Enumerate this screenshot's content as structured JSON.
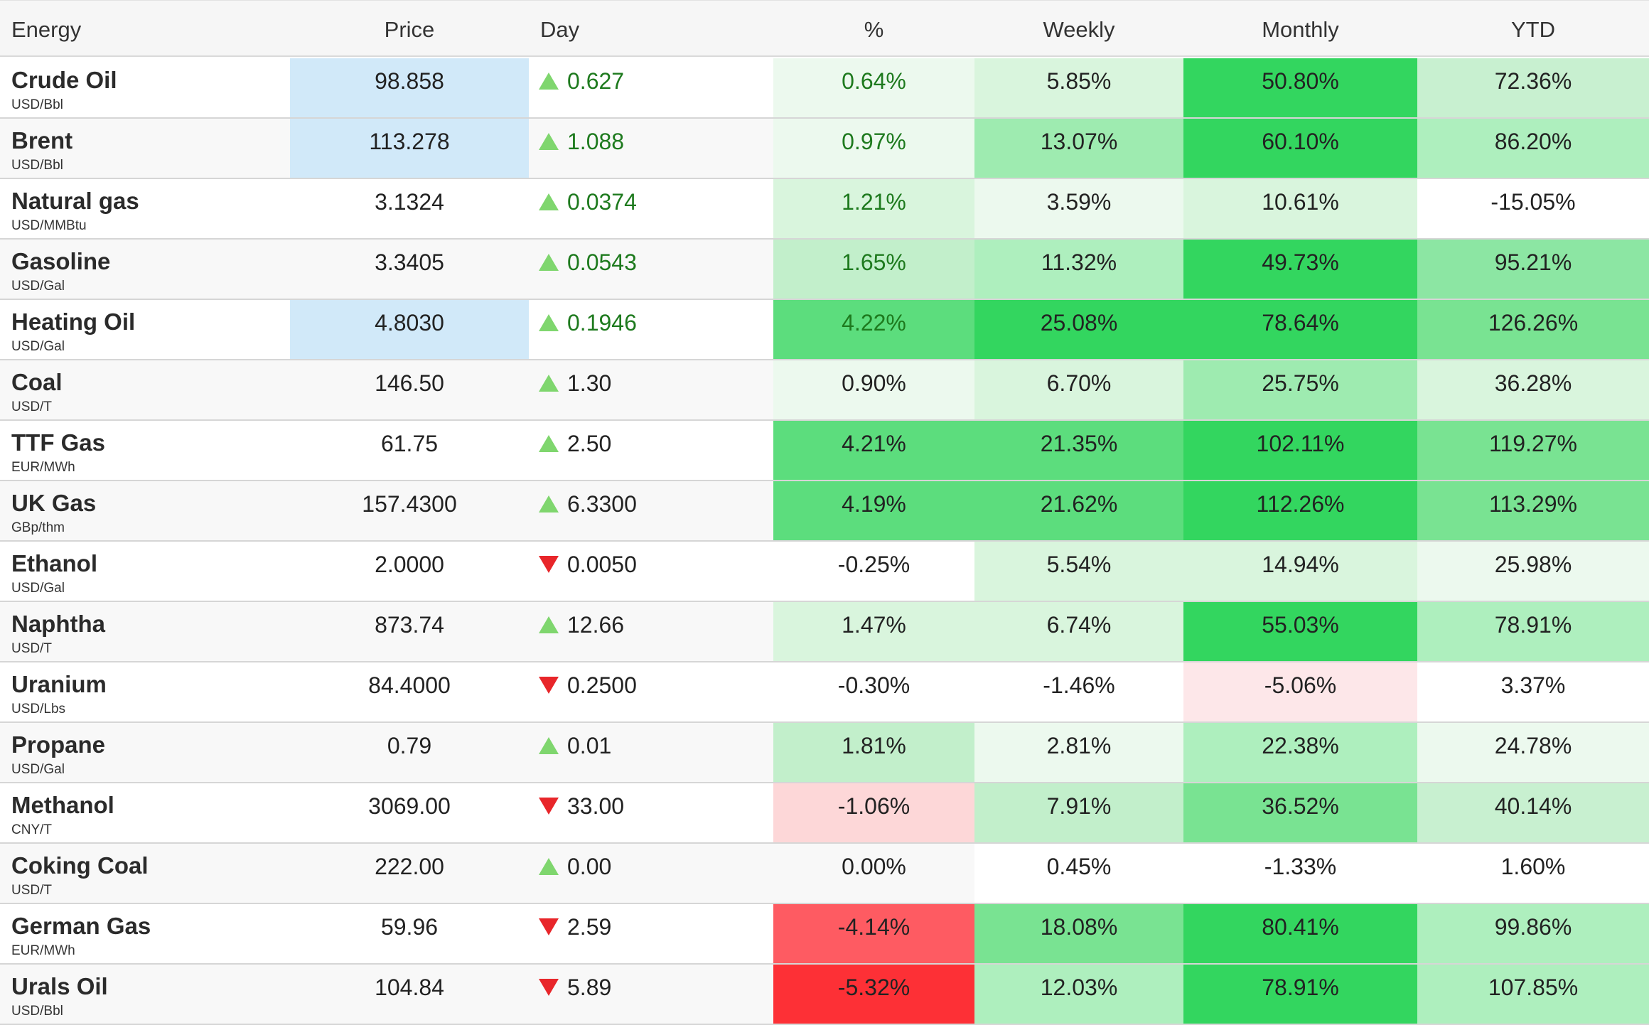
{
  "header": {
    "energy": "Energy",
    "price": "Price",
    "day": "Day",
    "pct": "%",
    "weekly": "Weekly",
    "monthly": "Monthly",
    "ytd": "YTD"
  },
  "colors": {
    "price_highlight": "#d1e9f9",
    "positive_text": "#1e7a1e",
    "neutral_text": "#222222",
    "row_alt": "#f8f8f8",
    "up_arrow": "#7fd66e",
    "down_arrow": "#e8262a"
  },
  "rows": [
    {
      "name": "Crude Oil",
      "unit": "USD/Bbl",
      "price": "98.858",
      "price_highlight": true,
      "day": "0.627",
      "dir": "up",
      "green_text": true,
      "pct": "0.64%",
      "weekly": "5.85%",
      "monthly": "50.80%",
      "ytd": "72.36%",
      "bg": [
        "#ecf9ee",
        "#d9f5dd",
        "#33d65f",
        "#c8f0d0"
      ]
    },
    {
      "name": "Brent",
      "unit": "USD/Bbl",
      "price": "113.278",
      "price_highlight": true,
      "day": "1.088",
      "dir": "up",
      "green_text": true,
      "pct": "0.97%",
      "weekly": "13.07%",
      "monthly": "60.10%",
      "ytd": "86.20%",
      "bg": [
        "#ecf9ee",
        "#9eebb0",
        "#33d65f",
        "#aeefbe"
      ]
    },
    {
      "name": "Natural gas",
      "unit": "USD/MMBtu",
      "price": "3.1324",
      "price_highlight": false,
      "day": "0.0374",
      "dir": "up",
      "green_text": true,
      "pct": "1.21%",
      "weekly": "3.59%",
      "monthly": "10.61%",
      "ytd": "-15.05%",
      "bg": [
        "#d9f5dd",
        "#ecf9ee",
        "#d9f5dd",
        "#ffffff"
      ]
    },
    {
      "name": "Gasoline",
      "unit": "USD/Gal",
      "price": "3.3405",
      "price_highlight": false,
      "day": "0.0543",
      "dir": "up",
      "green_text": true,
      "pct": "1.65%",
      "weekly": "11.32%",
      "monthly": "49.73%",
      "ytd": "95.21%",
      "bg": [
        "#c2efcb",
        "#aeefbe",
        "#33d65f",
        "#8ce6a3"
      ]
    },
    {
      "name": "Heating Oil",
      "unit": "USD/Gal",
      "price": "4.8030",
      "price_highlight": true,
      "day": "0.1946",
      "dir": "up",
      "green_text": true,
      "pct": "4.22%",
      "weekly": "25.08%",
      "monthly": "78.64%",
      "ytd": "126.26%",
      "bg": [
        "#5cdd7d",
        "#33d65f",
        "#33d65f",
        "#79e392"
      ]
    },
    {
      "name": "Coal",
      "unit": "USD/T",
      "price": "146.50",
      "price_highlight": false,
      "day": "1.30",
      "dir": "up",
      "green_text": false,
      "pct": "0.90%",
      "weekly": "6.70%",
      "monthly": "25.75%",
      "ytd": "36.28%",
      "bg": [
        "#ecf9ee",
        "#d9f5dd",
        "#9eebb0",
        "#d9f5dd"
      ]
    },
    {
      "name": "TTF Gas",
      "unit": "EUR/MWh",
      "price": "61.75",
      "price_highlight": false,
      "day": "2.50",
      "dir": "up",
      "green_text": false,
      "pct": "4.21%",
      "weekly": "21.35%",
      "monthly": "102.11%",
      "ytd": "119.27%",
      "bg": [
        "#5cdd7d",
        "#5cdd7d",
        "#33d65f",
        "#79e392"
      ]
    },
    {
      "name": "UK Gas",
      "unit": "GBp/thm",
      "price": "157.4300",
      "price_highlight": false,
      "day": "6.3300",
      "dir": "up",
      "green_text": false,
      "pct": "4.19%",
      "weekly": "21.62%",
      "monthly": "112.26%",
      "ytd": "113.29%",
      "bg": [
        "#5cdd7d",
        "#5cdd7d",
        "#33d65f",
        "#79e392"
      ]
    },
    {
      "name": "Ethanol",
      "unit": "USD/Gal",
      "price": "2.0000",
      "price_highlight": false,
      "day": "0.0050",
      "dir": "down",
      "green_text": false,
      "pct": "-0.25%",
      "weekly": "5.54%",
      "monthly": "14.94%",
      "ytd": "25.98%",
      "bg": [
        "#ffffff",
        "#d9f5dd",
        "#d9f5dd",
        "#ecf9ee"
      ]
    },
    {
      "name": "Naphtha",
      "unit": "USD/T",
      "price": "873.74",
      "price_highlight": false,
      "day": "12.66",
      "dir": "up",
      "green_text": false,
      "pct": "1.47%",
      "weekly": "6.74%",
      "monthly": "55.03%",
      "ytd": "78.91%",
      "bg": [
        "#d9f5dd",
        "#d9f5dd",
        "#33d65f",
        "#aeefbe"
      ]
    },
    {
      "name": "Uranium",
      "unit": "USD/Lbs",
      "price": "84.4000",
      "price_highlight": false,
      "day": "0.2500",
      "dir": "down",
      "green_text": false,
      "pct": "-0.30%",
      "weekly": "-1.46%",
      "monthly": "-5.06%",
      "ytd": "3.37%",
      "bg": [
        "#ffffff",
        "#ffffff",
        "#fde7e9",
        "#ffffff"
      ]
    },
    {
      "name": "Propane",
      "unit": "USD/Gal",
      "price": "0.79",
      "price_highlight": false,
      "day": "0.01",
      "dir": "up",
      "green_text": false,
      "pct": "1.81%",
      "weekly": "2.81%",
      "monthly": "22.38%",
      "ytd": "24.78%",
      "bg": [
        "#c2efcb",
        "#ecf9ee",
        "#aeefbe",
        "#ecf9ee"
      ]
    },
    {
      "name": "Methanol",
      "unit": "CNY/T",
      "price": "3069.00",
      "price_highlight": false,
      "day": "33.00",
      "dir": "down",
      "green_text": false,
      "pct": "-1.06%",
      "weekly": "7.91%",
      "monthly": "36.52%",
      "ytd": "40.14%",
      "bg": [
        "#fdd7d8",
        "#c2efcb",
        "#79e392",
        "#c8f0d0"
      ]
    },
    {
      "name": "Coking Coal",
      "unit": "USD/T",
      "price": "222.00",
      "price_highlight": false,
      "day": "0.00",
      "dir": "up",
      "green_text": false,
      "pct": "0.00%",
      "weekly": "0.45%",
      "monthly": "-1.33%",
      "ytd": "1.60%",
      "bg": [
        "#f8f8f8",
        "#ffffff",
        "#ffffff",
        "#ffffff"
      ]
    },
    {
      "name": "German Gas",
      "unit": "EUR/MWh",
      "price": "59.96",
      "price_highlight": false,
      "day": "2.59",
      "dir": "down",
      "green_text": false,
      "pct": "-4.14%",
      "weekly": "18.08%",
      "monthly": "80.41%",
      "ytd": "99.86%",
      "bg": [
        "#fe5b62",
        "#79e392",
        "#33d65f",
        "#aeefbe"
      ]
    },
    {
      "name": "Urals Oil",
      "unit": "USD/Bbl",
      "price": "104.84",
      "price_highlight": false,
      "day": "5.89",
      "dir": "down",
      "green_text": false,
      "pct": "-5.32%",
      "weekly": "12.03%",
      "monthly": "78.91%",
      "ytd": "107.85%",
      "bg": [
        "#fd3036",
        "#aeefbe",
        "#33d65f",
        "#aeefbe"
      ]
    }
  ]
}
